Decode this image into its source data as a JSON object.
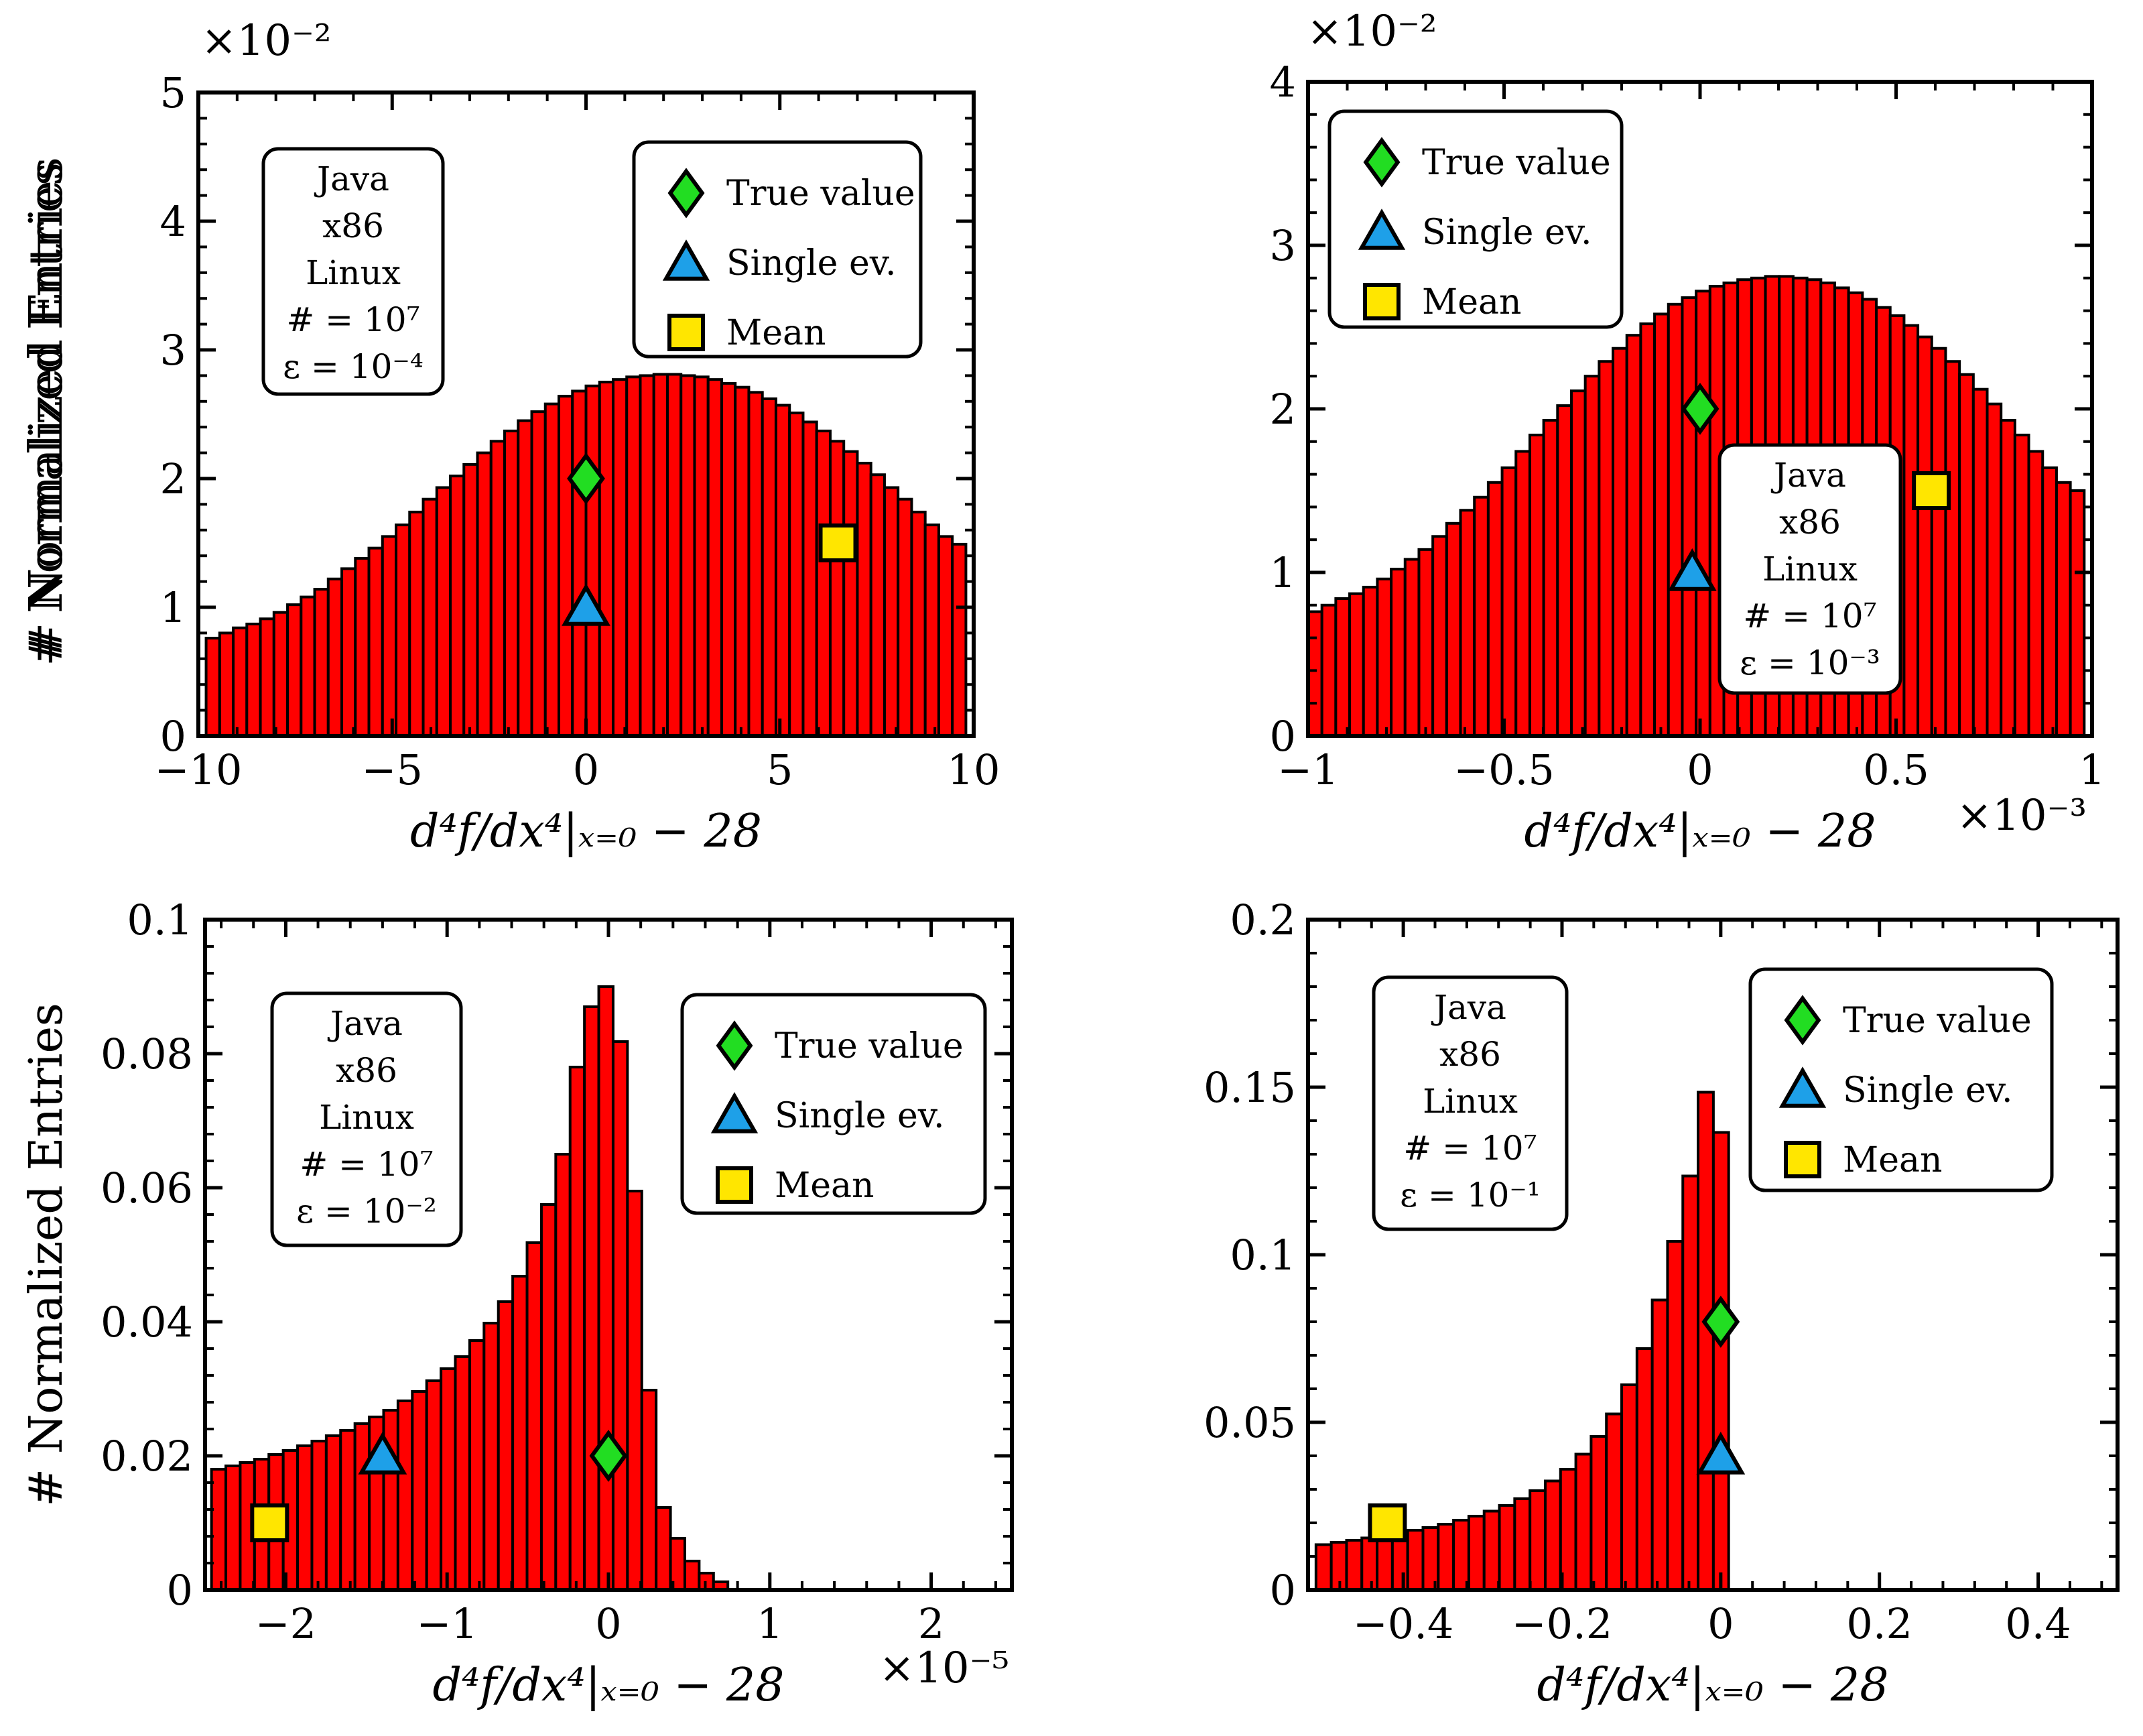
{
  "chart_data": [
    {
      "type": "bar",
      "panel": "top-left",
      "xlim": [
        -10,
        10
      ],
      "ylim": [
        0,
        5
      ],
      "xticks": [
        -10,
        -5,
        0,
        5,
        10
      ],
      "xtick_labels": [
        "−10",
        "−5",
        "0",
        "5",
        "10"
      ],
      "yticks": [
        0,
        1,
        2,
        3,
        4,
        5
      ],
      "ytick_labels": [
        "0",
        "1",
        "2",
        "3",
        "4",
        "5"
      ],
      "y_multiplier": "×10⁻²",
      "x_multiplier": "",
      "xlabel": "d⁴f/dx⁴|ₓ₌₀ − 28",
      "ylabel": "# Normalized Entries",
      "histogram": {
        "n_bins": 56,
        "range": [
          -9.8,
          9.8
        ],
        "values": [
          0.76,
          0.8,
          0.84,
          0.87,
          0.91,
          0.96,
          1.02,
          1.08,
          1.14,
          1.22,
          1.3,
          1.38,
          1.46,
          1.55,
          1.64,
          1.74,
          1.84,
          1.93,
          2.02,
          2.11,
          2.2,
          2.29,
          2.37,
          2.45,
          2.52,
          2.58,
          2.64,
          2.68,
          2.72,
          2.75,
          2.77,
          2.79,
          2.8,
          2.81,
          2.81,
          2.8,
          2.79,
          2.77,
          2.74,
          2.71,
          2.67,
          2.62,
          2.57,
          2.51,
          2.44,
          2.37,
          2.29,
          2.21,
          2.12,
          2.03,
          1.93,
          1.84,
          1.74,
          1.64,
          1.55,
          1.49
        ]
      },
      "markers": {
        "true_value": {
          "x": 0.0,
          "y": 2.0
        },
        "single_ev": {
          "x": 0.0,
          "y": 1.0
        },
        "mean": {
          "x": 6.5,
          "y": 1.5
        }
      },
      "info_lines": [
        "Java",
        "x86",
        "Linux",
        "# = 10⁷",
        "ε = 10⁻⁴"
      ],
      "info_position": "upper-left",
      "legend_position": "upper-right"
    },
    {
      "type": "bar",
      "panel": "top-right",
      "xlim": [
        -1,
        1
      ],
      "ylim": [
        0,
        4
      ],
      "xticks": [
        -1,
        -0.5,
        0,
        0.5,
        1
      ],
      "xtick_labels": [
        "−1",
        "−0.5",
        "0",
        "0.5",
        "1"
      ],
      "yticks": [
        0,
        1,
        2,
        3,
        4
      ],
      "ytick_labels": [
        "0",
        "1",
        "2",
        "3",
        "4"
      ],
      "y_multiplier": "×10⁻²",
      "x_multiplier": "×10⁻³",
      "xlabel": "d⁴f/dx⁴|ₓ₌₀ − 28",
      "ylabel": "# Normalized Entries",
      "histogram": {
        "n_bins": 56,
        "range": [
          -1.0,
          0.98
        ],
        "values": [
          0.76,
          0.8,
          0.84,
          0.87,
          0.91,
          0.96,
          1.02,
          1.08,
          1.14,
          1.22,
          1.3,
          1.38,
          1.46,
          1.55,
          1.64,
          1.74,
          1.84,
          1.93,
          2.02,
          2.11,
          2.2,
          2.29,
          2.37,
          2.45,
          2.52,
          2.58,
          2.64,
          2.68,
          2.72,
          2.75,
          2.77,
          2.79,
          2.8,
          2.81,
          2.81,
          2.8,
          2.79,
          2.77,
          2.74,
          2.71,
          2.67,
          2.62,
          2.57,
          2.51,
          2.44,
          2.37,
          2.29,
          2.21,
          2.12,
          2.03,
          1.93,
          1.84,
          1.74,
          1.64,
          1.55,
          1.5
        ]
      },
      "markers": {
        "true_value": {
          "x": 0.0,
          "y": 2.0
        },
        "single_ev": {
          "x": -0.02,
          "y": 1.0
        },
        "mean": {
          "x": 0.59,
          "y": 1.5
        }
      },
      "info_lines": [
        "Java",
        "x86",
        "Linux",
        "# = 10⁷",
        "ε = 10⁻³"
      ],
      "info_position": "center-right",
      "legend_position": "upper-left"
    },
    {
      "type": "bar",
      "panel": "bottom-left",
      "xlim": [
        -2.5,
        2.5
      ],
      "ylim": [
        0,
        0.1
      ],
      "xticks": [
        -2,
        -1,
        0,
        1,
        2
      ],
      "xtick_labels": [
        "−2",
        "−1",
        "0",
        "1",
        "2"
      ],
      "yticks": [
        0,
        0.02,
        0.04,
        0.06,
        0.08,
        0.1
      ],
      "ytick_labels": [
        "0",
        "0.02",
        "0.04",
        "0.06",
        "0.08",
        "0.1"
      ],
      "y_multiplier": "",
      "x_multiplier": "×10⁻⁵",
      "xlabel": "d⁴f/dx⁴|ₓ₌₀ − 28",
      "ylabel": "# Normalized Entries",
      "histogram": {
        "n_bins": 36,
        "range": [
          -2.46,
          0.74
        ],
        "values": [
          0.018,
          0.0185,
          0.019,
          0.0195,
          0.0202,
          0.0208,
          0.0215,
          0.0222,
          0.023,
          0.0238,
          0.0248,
          0.0258,
          0.0268,
          0.0282,
          0.0296,
          0.0312,
          0.033,
          0.0348,
          0.0372,
          0.0398,
          0.043,
          0.0468,
          0.0518,
          0.0575,
          0.065,
          0.078,
          0.087,
          0.09,
          0.0818,
          0.0595,
          0.0298,
          0.0123,
          0.0077,
          0.0043,
          0.0025,
          0.0012
        ]
      },
      "markers": {
        "true_value": {
          "x": 0.0,
          "y": 0.02
        },
        "single_ev": {
          "x": -1.4,
          "y": 0.02
        },
        "mean": {
          "x": -2.1,
          "y": 0.01
        }
      },
      "info_lines": [
        "Java",
        "x86",
        "Linux",
        "# = 10⁷",
        "ε = 10⁻²"
      ],
      "info_position": "upper-left",
      "legend_position": "upper-right"
    },
    {
      "type": "bar",
      "panel": "bottom-right",
      "xlim": [
        -0.52,
        0.5
      ],
      "ylim": [
        0,
        0.2
      ],
      "xticks": [
        -0.4,
        -0.2,
        0,
        0.2,
        0.4
      ],
      "xtick_labels": [
        "−0.4",
        "−0.2",
        "0",
        "0.2",
        "0.4"
      ],
      "yticks": [
        0,
        0.05,
        0.1,
        0.15,
        0.2
      ],
      "ytick_labels": [
        "0",
        "0.05",
        "0.1",
        "0.15",
        "0.2"
      ],
      "y_multiplier": "",
      "x_multiplier": "",
      "xlabel": "d⁴f/dx⁴|ₓ₌₀ − 28",
      "ylabel": "# Normalized Entries",
      "histogram": {
        "n_bins": 27,
        "range": [
          -0.51,
          0.01
        ],
        "values": [
          0.0135,
          0.0142,
          0.0148,
          0.0155,
          0.0162,
          0.017,
          0.0178,
          0.0186,
          0.0196,
          0.0208,
          0.022,
          0.0235,
          0.0252,
          0.0272,
          0.0296,
          0.0325,
          0.036,
          0.0405,
          0.0458,
          0.0525,
          0.0612,
          0.072,
          0.0865,
          0.104,
          0.1235,
          0.1485,
          0.1365
        ]
      },
      "markers": {
        "true_value": {
          "x": 0.0,
          "y": 0.08
        },
        "single_ev": {
          "x": 0.0,
          "y": 0.04
        },
        "mean": {
          "x": -0.42,
          "y": 0.02
        }
      },
      "info_lines": [
        "Java",
        "x86",
        "Linux",
        "# = 10⁷",
        "ε = 10⁻¹"
      ],
      "info_position": "upper-left",
      "legend_position": "upper-right"
    }
  ],
  "legend": {
    "true_value": "True value",
    "single_ev": "Single ev.",
    "mean": "Mean"
  },
  "colors": {
    "bar_fill": "#ff0000",
    "bar_edge": "#000000",
    "true_value": "#22dd22",
    "single_ev": "#1ea0e8",
    "mean": "#ffe600"
  }
}
